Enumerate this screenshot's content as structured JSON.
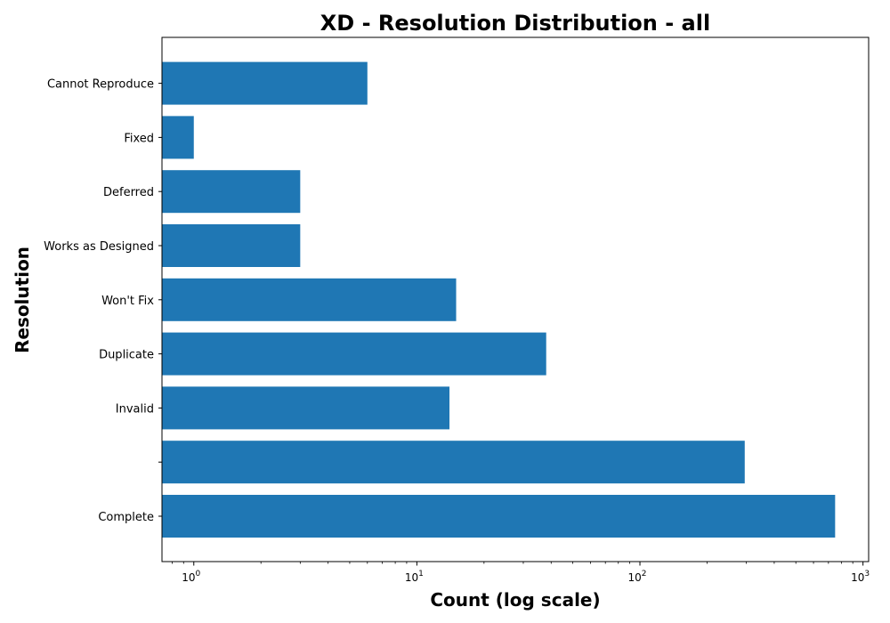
{
  "chart_data": {
    "type": "bar",
    "orientation": "horizontal",
    "title": "XD - Resolution Distribution - all",
    "xlabel": "Count (log scale)",
    "ylabel": "Resolution",
    "x_scale": "log",
    "xlim": [
      0.72,
      1060
    ],
    "x_ticks": [
      {
        "base": "10",
        "exp": "0",
        "value": 1
      },
      {
        "base": "10",
        "exp": "1",
        "value": 10
      },
      {
        "base": "10",
        "exp": "2",
        "value": 100
      },
      {
        "base": "10",
        "exp": "3",
        "value": 1000
      }
    ],
    "categories": [
      "Complete",
      "",
      "Invalid",
      "Duplicate",
      "Won't Fix",
      "Works as Designed",
      "Deferred",
      "Fixed",
      "Cannot Reproduce"
    ],
    "values": [
      750,
      295,
      14,
      38,
      15,
      3,
      3,
      1,
      6
    ],
    "bar_color": "#1f77b4",
    "grid": false,
    "legend": "none"
  }
}
